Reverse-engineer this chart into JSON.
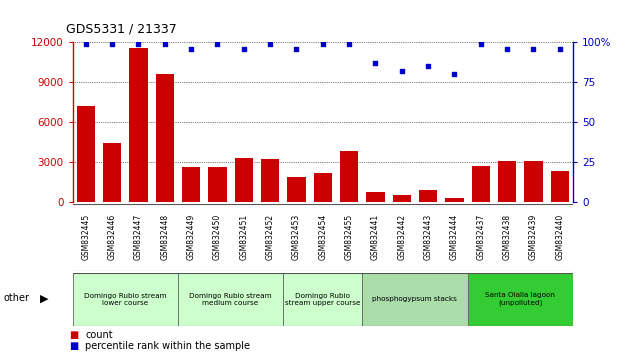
{
  "title": "GDS5331 / 21337",
  "categories": [
    "GSM832445",
    "GSM832446",
    "GSM832447",
    "GSM832448",
    "GSM832449",
    "GSM832450",
    "GSM832451",
    "GSM832452",
    "GSM832453",
    "GSM832454",
    "GSM832455",
    "GSM832441",
    "GSM832442",
    "GSM832443",
    "GSM832444",
    "GSM832437",
    "GSM832438",
    "GSM832439",
    "GSM832440"
  ],
  "counts": [
    7200,
    4400,
    11600,
    9600,
    2600,
    2600,
    3300,
    3200,
    1900,
    2200,
    3800,
    750,
    500,
    850,
    280,
    2700,
    3100,
    3100,
    2300
  ],
  "percentiles": [
    99,
    99,
    99,
    99,
    96,
    99,
    96,
    99,
    96,
    99,
    99,
    87,
    82,
    85,
    80,
    99,
    96,
    96,
    96
  ],
  "bar_color": "#cc0000",
  "dot_color": "#0000cc",
  "ylim_left": [
    0,
    12000
  ],
  "ylim_right": [
    0,
    100
  ],
  "yticks_left": [
    0,
    3000,
    6000,
    9000,
    12000
  ],
  "yticks_right": [
    0,
    25,
    50,
    75,
    100
  ],
  "groups": [
    {
      "label": "Domingo Rubio stream\nlower course",
      "start": 0,
      "end": 4
    },
    {
      "label": "Domingo Rubio stream\nmedium course",
      "start": 4,
      "end": 8
    },
    {
      "label": "Domingo Rubio\nstream upper course",
      "start": 8,
      "end": 11
    },
    {
      "label": "phosphogypsum stacks",
      "start": 11,
      "end": 15
    },
    {
      "label": "Santa Olalla lagoon\n(unpolluted)",
      "start": 15,
      "end": 19
    }
  ],
  "group_colors": [
    "#ccffcc",
    "#ccffcc",
    "#ccffcc",
    "#aaddaa",
    "#33cc33"
  ],
  "tick_area_color": "#c8c8c8",
  "left_axis_color": "#cc0000",
  "right_axis_color": "#0000cc",
  "grid_color": "#000000"
}
